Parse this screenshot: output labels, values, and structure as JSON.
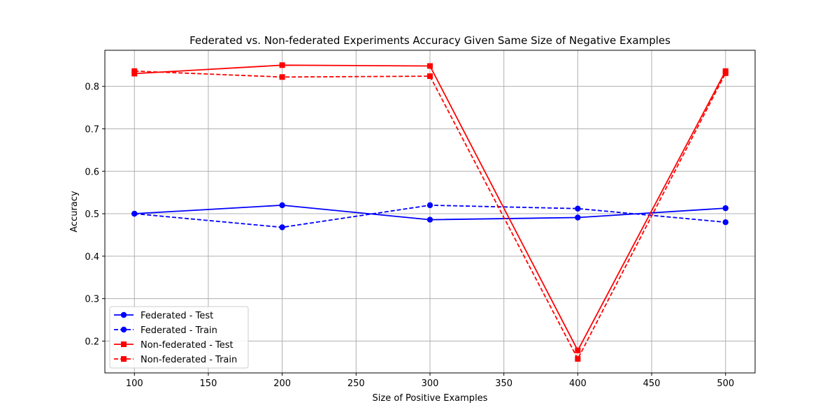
{
  "chart_data": {
    "type": "line",
    "title": "Federated vs. Non-federated Experiments Accuracy Given Same Size of Negative Examples",
    "xlabel": "Size of Positive Examples",
    "ylabel": "Accuracy",
    "x": [
      100,
      200,
      300,
      400,
      500
    ],
    "xlim": [
      80,
      520
    ],
    "ylim": [
      0.125,
      0.885
    ],
    "xticks": [
      100,
      150,
      200,
      250,
      300,
      350,
      400,
      450,
      500
    ],
    "yticks": [
      0.2,
      0.3,
      0.4,
      0.5,
      0.6,
      0.7,
      0.8
    ],
    "grid": true,
    "legend_position": "lower-left",
    "series": [
      {
        "name": "Federated - Test",
        "values": [
          0.5,
          0.52,
          0.486,
          0.491,
          0.513
        ],
        "color": "#0000ff",
        "linestyle": "solid",
        "marker": "circle"
      },
      {
        "name": "Federated - Train",
        "values": [
          0.5,
          0.468,
          0.52,
          0.512,
          0.48
        ],
        "color": "#0000ff",
        "linestyle": "dashed",
        "marker": "circle"
      },
      {
        "name": "Non-federated - Test",
        "values": [
          0.83,
          0.85,
          0.848,
          0.178,
          0.836
        ],
        "color": "#ff0000",
        "linestyle": "solid",
        "marker": "square"
      },
      {
        "name": "Non-federated - Train",
        "values": [
          0.836,
          0.822,
          0.824,
          0.158,
          0.831
        ],
        "color": "#ff0000",
        "linestyle": "dashed",
        "marker": "square"
      }
    ]
  }
}
